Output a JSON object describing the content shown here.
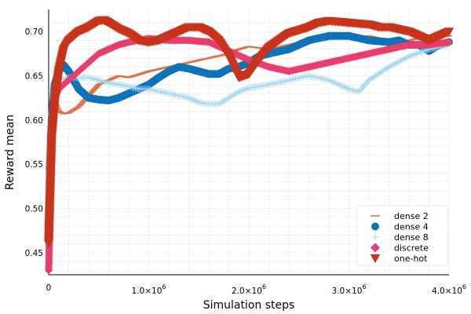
{
  "chart_data": {
    "type": "scatter",
    "title": "",
    "xlabel": "Simulation steps",
    "ylabel": "Reward mean",
    "xlim": [
      0,
      4000000
    ],
    "ylim": [
      0.425,
      0.725
    ],
    "grid": true,
    "legend_position": "bottom-right",
    "x_ticks": [
      {
        "value": 0,
        "base": "0",
        "exp": ""
      },
      {
        "value": 1000000,
        "base": "1.0×10",
        "exp": "6"
      },
      {
        "value": 2000000,
        "base": "2.0×10",
        "exp": "6"
      },
      {
        "value": 3000000,
        "base": "3.0×10",
        "exp": "6"
      },
      {
        "value": 4000000,
        "base": "4.0×10",
        "exp": "6"
      }
    ],
    "y_ticks": [
      {
        "value": 0.45,
        "label": "0.45"
      },
      {
        "value": 0.5,
        "label": "0.50"
      },
      {
        "value": 0.55,
        "label": "0.55"
      },
      {
        "value": 0.6,
        "label": "0.60"
      },
      {
        "value": 0.65,
        "label": "0.65"
      },
      {
        "value": 0.7,
        "label": "0.70"
      }
    ],
    "series": [
      {
        "name": "dense 2",
        "marker": "hline",
        "color": "#e26f46",
        "x": [
          0,
          50000,
          100000,
          150000,
          200000,
          300000,
          400000,
          500000,
          600000,
          700000,
          800000,
          1000000,
          1200000,
          1400000,
          1600000,
          1800000,
          1900000,
          2000000,
          2200000,
          2400000,
          2600000,
          2800000,
          3000000,
          3200000,
          3400000,
          3600000,
          3800000,
          4000000
        ],
        "y": [
          0.545,
          0.625,
          0.61,
          0.607,
          0.608,
          0.615,
          0.628,
          0.64,
          0.645,
          0.65,
          0.648,
          0.655,
          0.66,
          0.665,
          0.67,
          0.675,
          0.68,
          0.683,
          0.68,
          0.685,
          0.69,
          0.692,
          0.695,
          0.695,
          0.69,
          0.69,
          0.695,
          0.695
        ]
      },
      {
        "name": "dense 4",
        "marker": "circle",
        "color": "#0d73b8",
        "x": [
          0,
          30000,
          60000,
          100000,
          150000,
          200000,
          300000,
          400000,
          500000,
          600000,
          700000,
          800000,
          900000,
          1000000,
          1100000,
          1200000,
          1300000,
          1400000,
          1500000,
          1600000,
          1700000,
          1800000,
          1900000,
          2000000,
          2100000,
          2200000,
          2400000,
          2600000,
          2800000,
          3000000,
          3200000,
          3400000,
          3500000,
          3600000,
          3700000,
          3800000,
          3900000,
          4000000
        ],
        "y": [
          0.48,
          0.6,
          0.64,
          0.655,
          0.662,
          0.655,
          0.635,
          0.625,
          0.623,
          0.622,
          0.625,
          0.63,
          0.635,
          0.64,
          0.648,
          0.655,
          0.66,
          0.658,
          0.655,
          0.652,
          0.652,
          0.658,
          0.66,
          0.665,
          0.672,
          0.675,
          0.68,
          0.69,
          0.695,
          0.695,
          0.69,
          0.688,
          0.69,
          0.685,
          0.685,
          0.678,
          0.685,
          0.688
        ]
      },
      {
        "name": "dense 8",
        "marker": "plus",
        "color": "#a6d8f0",
        "x": [
          0,
          50000,
          100000,
          200000,
          300000,
          400000,
          500000,
          600000,
          700000,
          800000,
          900000,
          1000000,
          1200000,
          1400000,
          1500000,
          1600000,
          1700000,
          1800000,
          1900000,
          2000000,
          2200000,
          2400000,
          2600000,
          2800000,
          3000000,
          3100000,
          3200000,
          3400000,
          3600000,
          3800000,
          4000000
        ],
        "y": [
          0.54,
          0.63,
          0.645,
          0.648,
          0.648,
          0.648,
          0.645,
          0.642,
          0.64,
          0.638,
          0.635,
          0.635,
          0.63,
          0.625,
          0.62,
          0.618,
          0.618,
          0.625,
          0.632,
          0.636,
          0.64,
          0.645,
          0.65,
          0.645,
          0.635,
          0.632,
          0.645,
          0.66,
          0.672,
          0.68,
          0.685
        ]
      },
      {
        "name": "discrete",
        "marker": "diamond",
        "color": "#e83e6c",
        "x": [
          0,
          30000,
          60000,
          100000,
          200000,
          300000,
          400000,
          500000,
          600000,
          700000,
          800000,
          900000,
          1000000,
          1200000,
          1400000,
          1600000,
          1800000,
          2000000,
          2200000,
          2400000,
          2600000,
          2800000,
          3000000,
          3200000,
          3400000,
          3600000,
          3800000,
          4000000
        ],
        "y": [
          0.43,
          0.58,
          0.625,
          0.635,
          0.645,
          0.655,
          0.665,
          0.675,
          0.68,
          0.685,
          0.688,
          0.69,
          0.692,
          0.69,
          0.69,
          0.688,
          0.678,
          0.668,
          0.66,
          0.655,
          0.66,
          0.665,
          0.67,
          0.675,
          0.68,
          0.685,
          0.685,
          0.688
        ]
      },
      {
        "name": "one-hot",
        "marker": "triangle-down",
        "color": "#c8341b",
        "x": [
          0,
          30000,
          60000,
          100000,
          150000,
          200000,
          300000,
          400000,
          500000,
          550000,
          600000,
          700000,
          800000,
          900000,
          1000000,
          1100000,
          1200000,
          1300000,
          1400000,
          1500000,
          1600000,
          1700000,
          1800000,
          1900000,
          2000000,
          2100000,
          2200000,
          2400000,
          2600000,
          2700000,
          2800000,
          3000000,
          3200000,
          3300000,
          3400000,
          3600000,
          3800000,
          4000000
        ],
        "y": [
          0.46,
          0.58,
          0.62,
          0.655,
          0.68,
          0.69,
          0.7,
          0.705,
          0.712,
          0.713,
          0.71,
          0.703,
          0.698,
          0.69,
          0.688,
          0.69,
          0.695,
          0.7,
          0.705,
          0.705,
          0.7,
          0.69,
          0.672,
          0.648,
          0.652,
          0.668,
          0.682,
          0.698,
          0.705,
          0.71,
          0.712,
          0.71,
          0.708,
          0.705,
          0.705,
          0.7,
          0.69,
          0.7
        ]
      }
    ]
  }
}
